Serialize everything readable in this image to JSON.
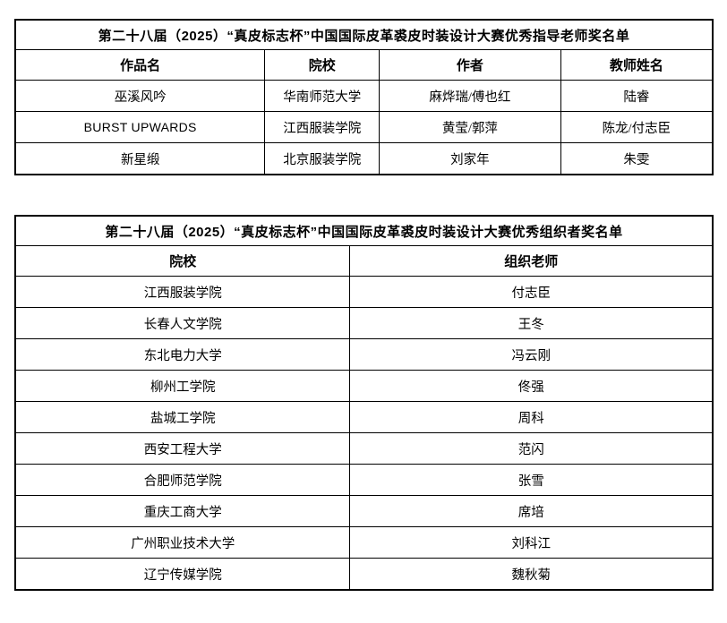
{
  "document": {
    "colors": {
      "border": "#000000",
      "text": "#000000",
      "background": "#ffffff"
    },
    "tables": [
      {
        "title": "第二十八届（2025）“真皮标志杯”中国国际皮革裘皮时装设计大赛优秀指导老师奖名单",
        "columns": [
          "作品名",
          "院校",
          "作者",
          "教师姓名"
        ],
        "rows": [
          [
            "巫溪风吟",
            "华南师范大学",
            "麻烨瑞/傅也红",
            "陆睿"
          ],
          [
            "BURST UPWARDS",
            "江西服装学院",
            "黄莹/郭萍",
            "陈龙/付志臣"
          ],
          [
            "新星缎",
            "北京服装学院",
            "刘家年",
            "朱雯"
          ]
        ]
      },
      {
        "title": "第二十八届（2025）“真皮标志杯”中国国际皮革裘皮时装设计大赛优秀组织者奖名单",
        "columns": [
          "院校",
          "组织老师"
        ],
        "rows": [
          [
            "江西服装学院",
            "付志臣"
          ],
          [
            "长春人文学院",
            "王冬"
          ],
          [
            "东北电力大学",
            "冯云刚"
          ],
          [
            "柳州工学院",
            "佟强"
          ],
          [
            "盐城工学院",
            "周科"
          ],
          [
            "西安工程大学",
            "范闪"
          ],
          [
            "合肥师范学院",
            "张雪"
          ],
          [
            "重庆工商大学",
            "席培"
          ],
          [
            "广州职业技术大学",
            "刘科江"
          ],
          [
            "辽宁传媒学院",
            "魏秋菊"
          ]
        ]
      }
    ]
  }
}
